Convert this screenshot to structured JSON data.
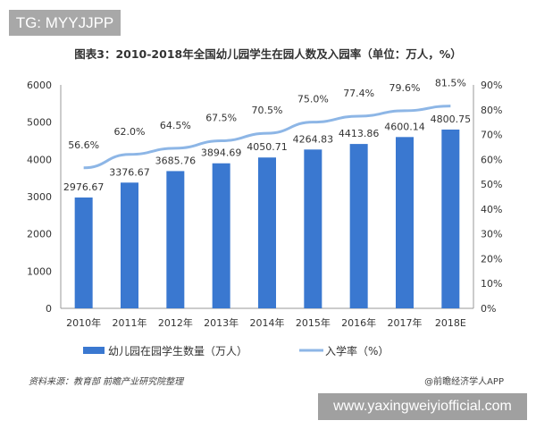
{
  "watermark_top": "TG: MYYJJPP",
  "watermark_bottom": "www.yaxingweiyiofficial.com",
  "source": "资料来源：教育部  前瞻产业研究院整理",
  "brand": "@前瞻经济学人APP",
  "colors": {
    "bar": "#3a78d0",
    "line": "#8db6e6"
  },
  "chart_data": {
    "type": "bar+line",
    "title": "图表3：2010-2018年全国幼儿园学生在园人数及入园率（单位：万人，%）",
    "categories": [
      "2010年",
      "2011年",
      "2012年",
      "2013年",
      "2014年",
      "2015年",
      "2016年",
      "2017年",
      "2018E"
    ],
    "series": [
      {
        "name": "幼儿园在园学生数量（万人）",
        "type": "bar",
        "axis": "left",
        "values": [
          2976.67,
          3376.67,
          3685.76,
          3894.69,
          4050.71,
          4264.83,
          4413.86,
          4600.14,
          4800.75
        ],
        "labels": [
          "2976.67",
          "3376.67",
          "3685.76",
          "3894.69",
          "4050.71",
          "4264.83",
          "4413.86",
          "4600.14",
          "4800.75"
        ]
      },
      {
        "name": "入学率（%）",
        "type": "line",
        "axis": "right",
        "values": [
          56.6,
          62.0,
          64.5,
          67.5,
          70.5,
          75.0,
          77.4,
          79.6,
          81.5
        ],
        "labels": [
          "56.6%",
          "62.0%",
          "64.5%",
          "67.5%",
          "70.5%",
          "75.0%",
          "77.4%",
          "79.6%",
          "81.5%"
        ]
      }
    ],
    "ylim_left": [
      0,
      6000
    ],
    "yticks_left": [
      "0",
      "1000",
      "2000",
      "3000",
      "4000",
      "5000",
      "6000"
    ],
    "ylim_right": [
      0,
      90
    ],
    "yticks_right": [
      "0%",
      "10%",
      "20%",
      "30%",
      "40%",
      "50%",
      "60%",
      "70%",
      "80%",
      "90%"
    ],
    "grid": false,
    "legend": "bottom"
  }
}
